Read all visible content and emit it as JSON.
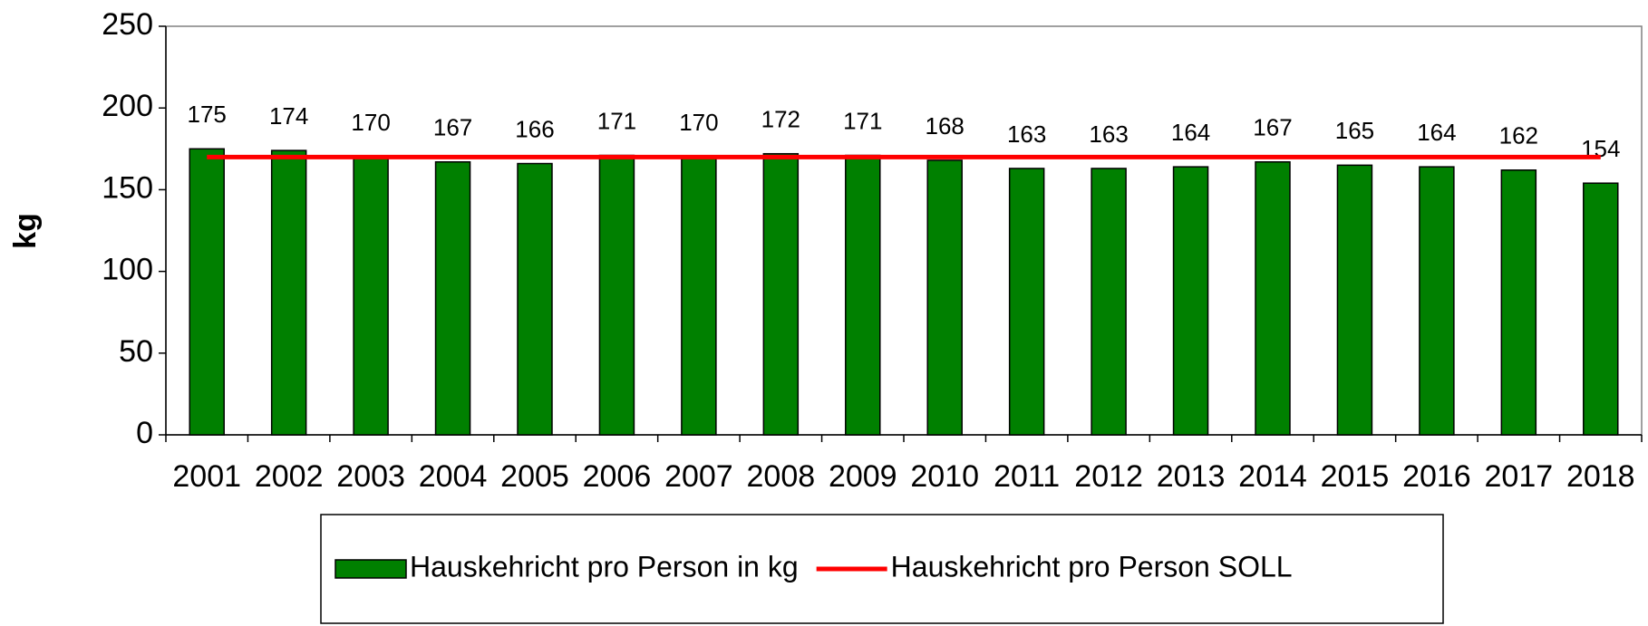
{
  "chart_data": {
    "type": "bar",
    "y_label": "kg",
    "categories": [
      "2001",
      "2002",
      "2003",
      "2004",
      "2005",
      "2006",
      "2007",
      "2008",
      "2009",
      "2010",
      "2011",
      "2012",
      "2013",
      "2014",
      "2015",
      "2016",
      "2017",
      "2018"
    ],
    "series": [
      {
        "name": "Hauskehricht pro Person in kg",
        "type": "bar",
        "color": "#008000",
        "values": [
          175,
          174,
          170,
          167,
          166,
          171,
          170,
          172,
          171,
          168,
          163,
          163,
          164,
          167,
          165,
          164,
          162,
          154
        ]
      },
      {
        "name": "Hauskehricht pro Person SOLL",
        "type": "line",
        "color": "#ff0000",
        "values": [
          170,
          170,
          170,
          170,
          170,
          170,
          170,
          170,
          170,
          170,
          170,
          170,
          170,
          170,
          170,
          170,
          170,
          170
        ]
      }
    ],
    "ylim": [
      0,
      250
    ],
    "yticks": [
      0,
      50,
      100,
      150,
      200,
      250
    ],
    "legend": "bottom"
  }
}
